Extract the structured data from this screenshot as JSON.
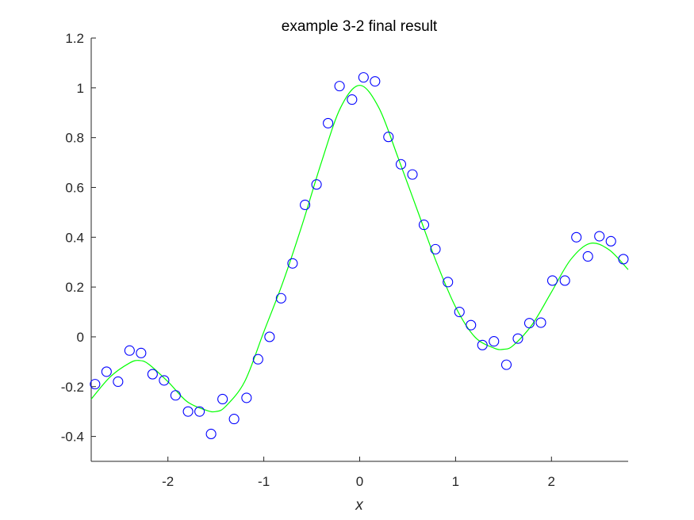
{
  "chart_data": {
    "type": "scatter",
    "title": "example 3-2 final result",
    "xlabel": "x",
    "ylabel": "",
    "xlim": [
      -2.8,
      2.8
    ],
    "ylim": [
      -0.5,
      1.2
    ],
    "xticks": [
      -2,
      -1,
      0,
      1,
      2
    ],
    "xtick_labels": [
      "-2",
      "-1",
      "0",
      "1",
      "2"
    ],
    "yticks": [
      -0.4,
      -0.2,
      0,
      0.2,
      0.4,
      0.6,
      0.8,
      1,
      1.2
    ],
    "ytick_labels": [
      "-0.4",
      "-0.2",
      "0",
      "0.2",
      "0.4",
      "0.6",
      "0.8",
      "1",
      "1.2"
    ],
    "grid": false,
    "series": [
      {
        "kind": "markers",
        "marker": "circle-open",
        "color": "#0000ff",
        "x": [
          -2.76,
          -2.64,
          -2.52,
          -2.4,
          -2.28,
          -2.16,
          -2.04,
          -1.92,
          -1.79,
          -1.67,
          -1.55,
          -1.43,
          -1.31,
          -1.18,
          -1.06,
          -0.94,
          -0.82,
          -0.7,
          -0.57,
          -0.45,
          -0.33,
          -0.21,
          -0.08,
          0.04,
          0.16,
          0.3,
          0.43,
          0.55,
          0.67,
          0.79,
          0.92,
          1.04,
          1.16,
          1.28,
          1.4,
          1.53,
          1.65,
          1.77,
          1.89,
          2.01,
          2.14,
          2.26,
          2.38,
          2.5,
          2.62,
          2.75
        ],
        "y": [
          -0.19,
          -0.14,
          -0.18,
          -0.055,
          -0.065,
          -0.15,
          -0.175,
          -0.235,
          -0.3,
          -0.3,
          -0.39,
          -0.25,
          -0.33,
          -0.245,
          -0.09,
          0.0,
          0.155,
          0.295,
          0.53,
          0.612,
          0.858,
          1.007,
          0.953,
          1.042,
          1.026,
          0.803,
          0.693,
          0.652,
          0.45,
          0.352,
          0.22,
          0.1,
          0.047,
          -0.033,
          -0.018,
          -0.112,
          -0.007,
          0.055,
          0.057,
          0.226,
          0.226,
          0.4,
          0.323,
          0.404,
          0.384,
          0.312
        ]
      },
      {
        "kind": "line",
        "color": "#00ff00",
        "x": [
          -2.8,
          -2.6,
          -2.4,
          -2.3,
          -2.2,
          -2.0,
          -1.8,
          -1.6,
          -1.5,
          -1.4,
          -1.2,
          -1.0,
          -0.8,
          -0.6,
          -0.4,
          -0.2,
          0.0,
          0.2,
          0.4,
          0.6,
          0.8,
          1.0,
          1.2,
          1.4,
          1.5,
          1.6,
          1.8,
          2.0,
          2.2,
          2.4,
          2.6,
          2.8
        ],
        "y": [
          -0.25,
          -0.16,
          -0.105,
          -0.095,
          -0.11,
          -0.18,
          -0.26,
          -0.295,
          -0.3,
          -0.28,
          -0.18,
          0.02,
          0.22,
          0.45,
          0.7,
          0.92,
          1.01,
          0.92,
          0.72,
          0.51,
          0.3,
          0.12,
          0.0,
          -0.045,
          -0.05,
          -0.035,
          0.05,
          0.18,
          0.31,
          0.375,
          0.35,
          0.27
        ]
      }
    ]
  }
}
